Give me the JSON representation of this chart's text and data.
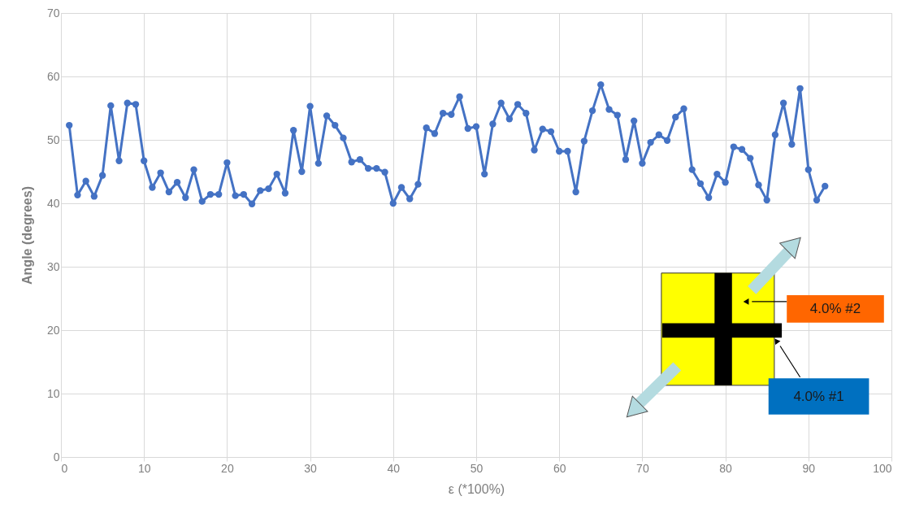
{
  "chart_data": {
    "type": "line",
    "xlabel": "ε (*100%)",
    "ylabel": "Angle (degrees)",
    "x": [
      1,
      2,
      3,
      4,
      5,
      6,
      7,
      8,
      9,
      10,
      11,
      12,
      13,
      14,
      15,
      16,
      17,
      18,
      19,
      20,
      21,
      22,
      23,
      24,
      25,
      26,
      27,
      28,
      29,
      30,
      31,
      32,
      33,
      34,
      35,
      36,
      37,
      38,
      39,
      40,
      41,
      42,
      43,
      44,
      45,
      46,
      47,
      48,
      49,
      50,
      51,
      52,
      53,
      54,
      55,
      56,
      57,
      58,
      59,
      60,
      61,
      62,
      63,
      64,
      65,
      66,
      67,
      68,
      69,
      70,
      71,
      72,
      73,
      74,
      75,
      76,
      77,
      78,
      79,
      80,
      81,
      82,
      83,
      84,
      85,
      86,
      87,
      88,
      89,
      90,
      91,
      92
    ],
    "series": [
      {
        "color": "#4472c4",
        "values": [
          52.3,
          41.3,
          43.5,
          41.1,
          44.4,
          55.4,
          46.7,
          55.8,
          55.6,
          46.7,
          42.5,
          44.8,
          41.8,
          43.3,
          40.9,
          45.3,
          40.3,
          41.4,
          41.4,
          46.4,
          41.2,
          41.4,
          39.9,
          42.0,
          42.3,
          44.6,
          41.6,
          51.5,
          45.0,
          55.3,
          46.3,
          53.8,
          52.3,
          50.3,
          46.5,
          46.9,
          45.5,
          45.5,
          44.9,
          40.0,
          42.5,
          40.7,
          43.0,
          51.9,
          51.0,
          54.2,
          54.0,
          56.8,
          51.8,
          52.1,
          44.6,
          52.5,
          55.8,
          53.3,
          55.6,
          54.2,
          48.4,
          51.7,
          51.3,
          48.2,
          48.2,
          41.8,
          49.8,
          54.6,
          58.7,
          54.8,
          53.9,
          46.9,
          53.0,
          46.3,
          49.6,
          50.8,
          49.9,
          53.6,
          54.9,
          45.3,
          43.1,
          40.9,
          44.6,
          43.3,
          48.9,
          48.5,
          47.1,
          42.9,
          40.5,
          50.8,
          55.8,
          49.3,
          58.1,
          45.3,
          40.5,
          42.7
        ]
      }
    ],
    "xlim": [
      0,
      100
    ],
    "xticks": [
      0,
      10,
      20,
      30,
      40,
      50,
      60,
      70,
      80,
      90,
      100
    ],
    "ylim": [
      0,
      70
    ],
    "yticks": [
      0,
      10,
      20,
      30,
      40,
      50,
      60,
      70
    ],
    "grid": true,
    "marker": "circle",
    "line_style": "solid",
    "annotations": [
      "4.0% #2",
      "4.0% #1"
    ]
  }
}
